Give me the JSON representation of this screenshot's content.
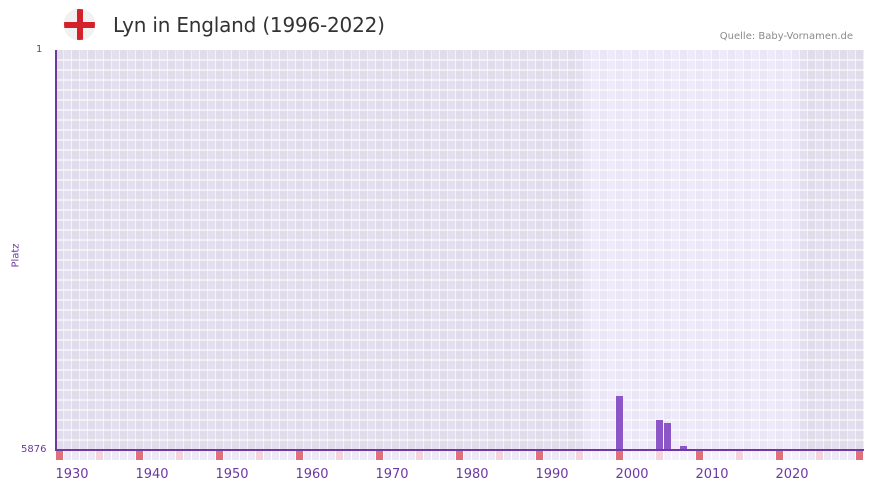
{
  "header": {
    "title": "Lyn in England (1996-2022)",
    "source": "Quelle: Baby-Vornamen.de",
    "flag_icon": "england-flag-icon"
  },
  "colors": {
    "axis": "#6c3aa0",
    "bar": "#8c55c8",
    "band_dark": "#e3dfee",
    "band_light": "#efeaf9",
    "decade_marker": "#e07079",
    "half_decade_marker": "#f4d4dc",
    "title": "#333333",
    "source": "#8a8a8a"
  },
  "chart_data": {
    "type": "bar",
    "title": "Lyn in England (1996-2022)",
    "xlabel": "",
    "ylabel": "Platz",
    "ylim": [
      5876,
      1
    ],
    "y_inverted": true,
    "xlim": [
      1930,
      2030
    ],
    "data_range": [
      1996,
      2022
    ],
    "x_ticks": [
      1930,
      1940,
      1950,
      1960,
      1970,
      1980,
      1990,
      2000,
      2010,
      2020
    ],
    "y_ticks": [
      1,
      5876
    ],
    "grid": true,
    "legend": null,
    "categories": [
      2000,
      2005,
      2006,
      2008
    ],
    "values": [
      5083,
      5435,
      5479,
      5817
    ],
    "series": [
      {
        "name": "Platz",
        "values": [
          {
            "year": 2000,
            "rank": 5083
          },
          {
            "year": 2005,
            "rank": 5435
          },
          {
            "year": 2006,
            "rank": 5479
          },
          {
            "year": 2008,
            "rank": 5817
          }
        ]
      }
    ],
    "source": "Quelle: Baby-Vornamen.de"
  },
  "axis": {
    "y_top_label": "1",
    "y_bottom_label": "5876",
    "y_title": "Platz",
    "x_labels": [
      "1930",
      "1940",
      "1950",
      "1960",
      "1970",
      "1980",
      "1990",
      "2000",
      "2010",
      "2020"
    ]
  }
}
